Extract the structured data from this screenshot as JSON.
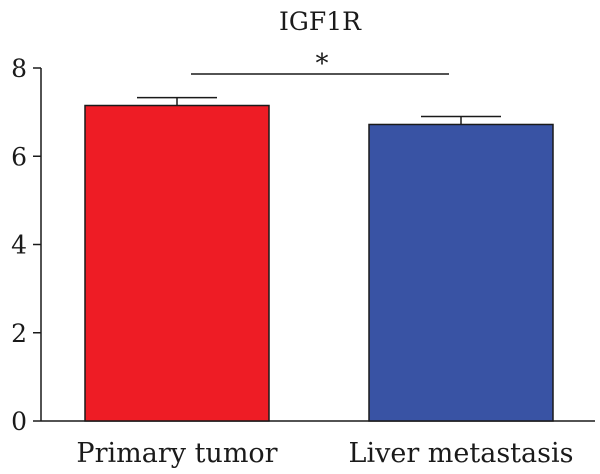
{
  "chart_data": {
    "type": "bar",
    "title": "IGF1R",
    "categories": [
      "Primary tumor",
      "Liver metastasis"
    ],
    "values": [
      7.15,
      6.72
    ],
    "errors": [
      0.18,
      0.18
    ],
    "ylim": [
      0,
      8
    ],
    "yticks": [
      "0",
      "2",
      "4",
      "6",
      "8"
    ],
    "colors": [
      "#ee1c25",
      "#3953a4"
    ],
    "significance": {
      "between": [
        0,
        1
      ],
      "label": "*"
    },
    "grid": false,
    "legend": "none"
  }
}
